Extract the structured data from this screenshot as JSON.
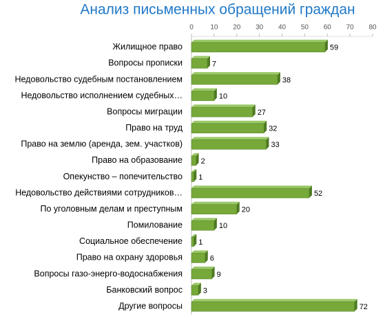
{
  "chart_data": {
    "type": "bar",
    "orientation": "horizontal",
    "title": "Анализ письменных обращений граждан",
    "categories": [
      "Жилищное право",
      "Вопросы прописки",
      "Недовольство судебным постановлением",
      "Недовольство исполнением судебных…",
      "Вопросы миграции",
      "Право на труд",
      "Право на землю  (аренда, зем. участков)",
      "Право на образование",
      "Опекунство – попечительство",
      "Недовольство действиями сотрудников…",
      "По уголовным делам и преступным",
      "Помилование",
      "Социальное обеспечение",
      "Право на охрану здоровья",
      "Вопросы газо-энерго-водоснабжения",
      "Банковский вопрос",
      "Другие вопросы"
    ],
    "values": [
      59,
      7,
      38,
      10,
      27,
      32,
      33,
      2,
      1,
      52,
      20,
      10,
      1,
      6,
      9,
      3,
      72
    ],
    "color": "#77a83a",
    "xlim": [
      0,
      80
    ],
    "xticks": [
      0,
      10,
      20,
      30,
      40,
      50,
      60,
      70,
      80
    ],
    "grid": false
  }
}
